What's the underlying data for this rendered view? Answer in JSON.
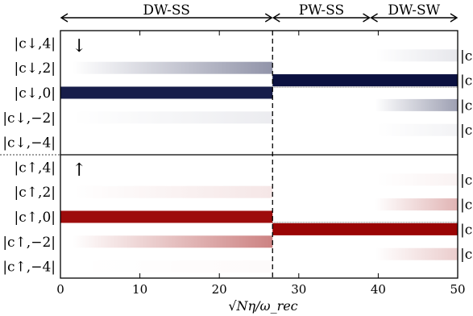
{
  "chart_data": {
    "type": "heatmap",
    "title": "",
    "xlabel": "√Nη/ω_rec",
    "xlim": [
      0,
      50
    ],
    "x_ticks": [
      "0",
      "10",
      "20",
      "30",
      "40",
      "50"
    ],
    "x_tick_values": [
      0,
      10,
      20,
      30,
      40,
      50
    ],
    "regime_boundaries": [
      26.7,
      39.0
    ],
    "regimes": [
      {
        "label": "DW-SS",
        "from": 0,
        "to": 26.7
      },
      {
        "label": "PW-SS",
        "from": 26.7,
        "to": 39.0
      },
      {
        "label": "DW-SW",
        "from": 39.0,
        "to": 50
      }
    ],
    "panels": [
      {
        "spin_label": "↓",
        "color": "#0b1140",
        "rows": [
          {
            "label": "|c↓,4|",
            "index": 4
          },
          {
            "label": "|c↓,2|",
            "index": 2
          },
          {
            "label": "|c↓,0|",
            "index": 0
          },
          {
            "label": "|c↓,−2|",
            "index": -2
          },
          {
            "label": "|c↓,−4|",
            "index": -4
          }
        ],
        "left_region": [
          {
            "index": 2,
            "start_value": 0.0,
            "end_value": 0.45
          },
          {
            "index": 0,
            "start_value": 0.95,
            "end_value": 0.95
          },
          {
            "index": -2,
            "start_value": 0.0,
            "end_value": 0.08
          }
        ],
        "middle_region": [
          {
            "index": 1,
            "value": 1.0
          }
        ],
        "right_region": [
          {
            "index": 3,
            "value": 0.1
          },
          {
            "index": 1,
            "value": 1.0
          },
          {
            "index": -1,
            "value": 0.4
          },
          {
            "index": -3,
            "value": 0.05
          }
        ]
      },
      {
        "spin_label": "↑",
        "color": "#9a0505",
        "rows": [
          {
            "label": "|c↑,4|",
            "index": 4
          },
          {
            "label": "|c↑,2|",
            "index": 2
          },
          {
            "label": "|c↑,0|",
            "index": 0
          },
          {
            "label": "|c↑,−2|",
            "index": -2
          },
          {
            "label": "|c↑,−4|",
            "index": -4
          }
        ],
        "left_region": [
          {
            "index": 2,
            "start_value": 0.0,
            "end_value": 0.1
          },
          {
            "index": 0,
            "start_value": 0.97,
            "end_value": 0.97
          },
          {
            "index": -2,
            "start_value": 0.0,
            "end_value": 0.5
          },
          {
            "index": -4,
            "start_value": 0.0,
            "end_value": 0.02
          }
        ],
        "middle_region": [
          {
            "index": -1,
            "value": 1.0
          }
        ],
        "right_region": [
          {
            "index": 3,
            "value": 0.05
          },
          {
            "index": 1,
            "value": 0.3
          },
          {
            "index": -1,
            "value": 1.0
          },
          {
            "index": -3,
            "value": 0.2
          }
        ]
      }
    ],
    "right_row_labels": [
      "|c",
      "|c",
      "|c",
      "|c",
      "|c",
      "|c",
      "|c",
      "|c"
    ]
  }
}
